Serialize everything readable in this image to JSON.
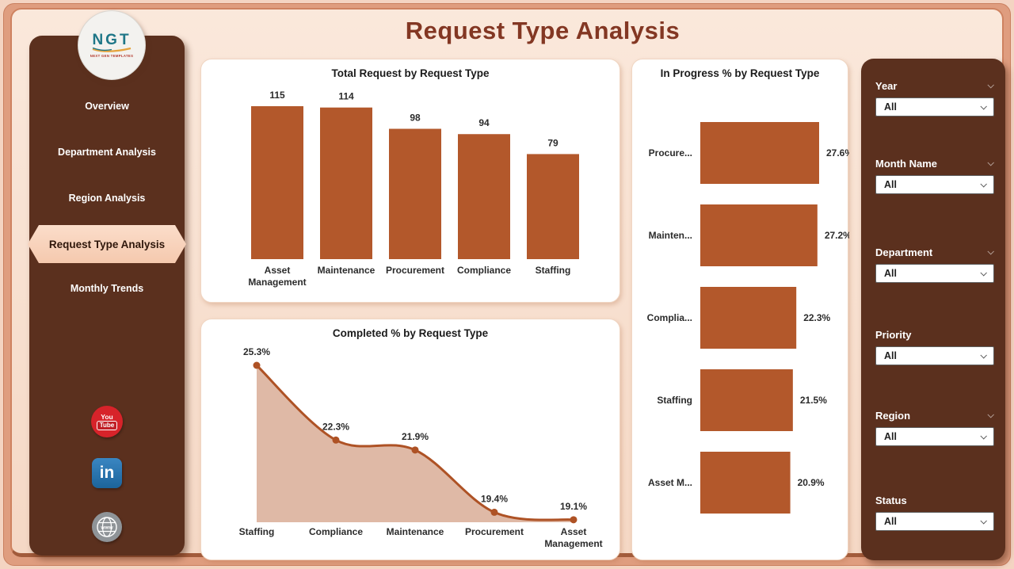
{
  "header": {
    "title": "Request Type Analysis"
  },
  "logo": {
    "text": "NGT",
    "tagline": "NEXT GEN TEMPLATES"
  },
  "sidebar": {
    "items": [
      {
        "label": "Overview",
        "active": false
      },
      {
        "label": "Department Analysis",
        "active": false
      },
      {
        "label": "Region Analysis",
        "active": false
      },
      {
        "label": "Request Type Analysis",
        "active": true
      },
      {
        "label": "Monthly Trends",
        "active": false
      }
    ],
    "social": {
      "youtube_top": "You",
      "youtube_bottom": "Tube",
      "linkedin": "in",
      "website": "www"
    }
  },
  "filters": {
    "groups": [
      {
        "label": "Year",
        "value": "All"
      },
      {
        "label": "Month Name",
        "value": "All"
      },
      {
        "label": "Department",
        "value": "All"
      },
      {
        "label": "Priority",
        "value": "All"
      },
      {
        "label": "Region",
        "value": "All"
      },
      {
        "label": "Status",
        "value": "All"
      }
    ]
  },
  "colors": {
    "accent": "#B3582B",
    "panel_brown": "#5B301E",
    "title_text": "#833723",
    "active_pill": "#F8D0B9"
  },
  "chart_data": [
    {
      "type": "bar",
      "title": "Total Request by Request Type",
      "categories": [
        "Asset Management",
        "Maintenance",
        "Procurement",
        "Compliance",
        "Staffing"
      ],
      "values": [
        115,
        114,
        98,
        94,
        79
      ],
      "data_labels": [
        "115",
        "114",
        "98",
        "94",
        "79"
      ],
      "xlabel": "",
      "ylabel": "",
      "ylim": [
        0,
        115
      ],
      "grid": false,
      "bar_color": "#B3582B"
    },
    {
      "type": "area",
      "title": "Completed % by Request Type",
      "categories": [
        "Staffing",
        "Compliance",
        "Maintenance",
        "Procurement",
        "Asset Management"
      ],
      "values": [
        25.3,
        22.3,
        21.9,
        19.4,
        19.1
      ],
      "data_labels": [
        "25.3%",
        "22.3%",
        "21.9%",
        "19.4%",
        "19.1%"
      ],
      "xlabel": "",
      "ylabel": "",
      "ylim": [
        19.0,
        25.3
      ],
      "grid": false,
      "line_color": "#AE5225",
      "fill_color": "rgba(179,88,43,0.42)"
    },
    {
      "type": "hbar",
      "title": "In Progress % by Request Type",
      "categories": [
        "Procure...",
        "Mainten...",
        "Complia...",
        "Staffing",
        "Asset M..."
      ],
      "values": [
        27.6,
        27.2,
        22.3,
        21.5,
        20.9
      ],
      "data_labels": [
        "27.6%",
        "27.2%",
        "22.3%",
        "21.5%",
        "20.9%"
      ],
      "xlabel": "",
      "ylabel": "",
      "xlim": [
        0,
        27.6
      ],
      "grid": false,
      "bar_color": "#B3582B"
    }
  ]
}
